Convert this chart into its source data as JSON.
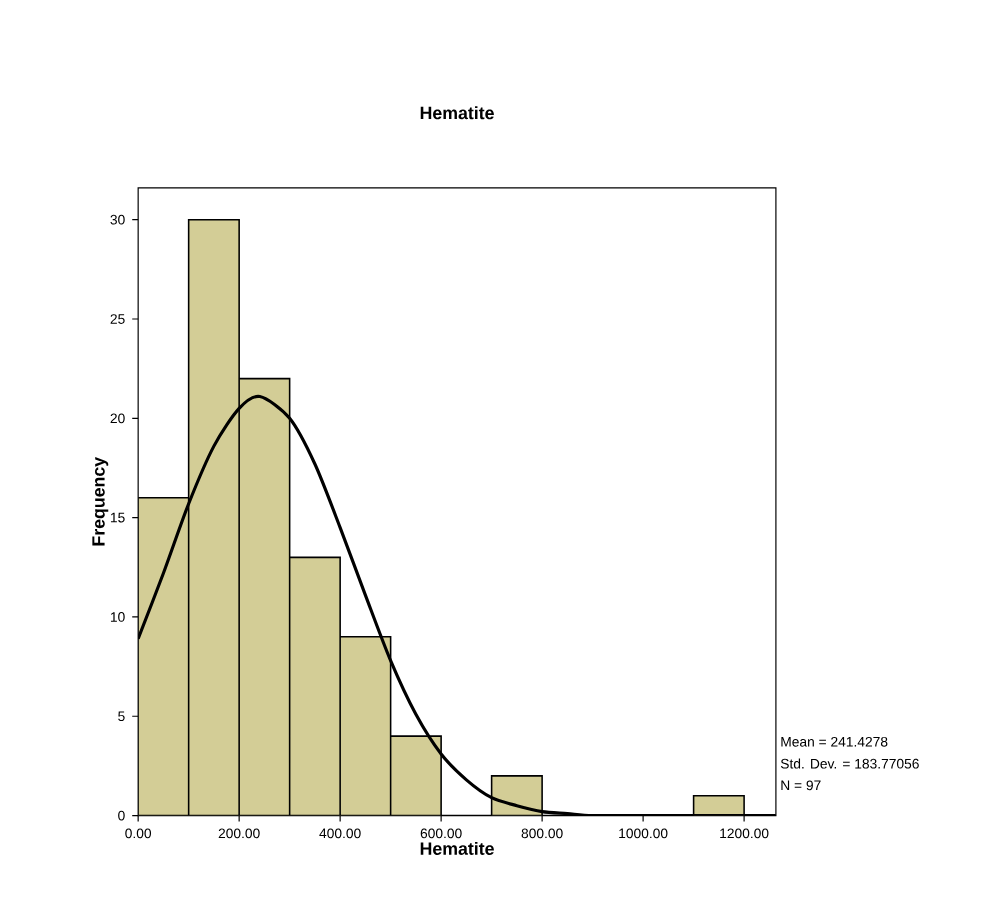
{
  "chart_data": {
    "type": "histogram",
    "title": "Hematite",
    "xlabel": "Hematite",
    "ylabel": "Frequency",
    "bins": [
      0,
      100,
      200,
      300,
      400,
      500,
      600,
      700,
      800,
      900,
      1000,
      1100,
      1200
    ],
    "values": [
      16,
      30,
      22,
      13,
      9,
      4,
      0,
      2,
      0,
      0,
      0,
      1
    ],
    "color": "#d3cd96",
    "series": [
      {
        "type": "line",
        "color": "#000000",
        "x": [
          0,
          50,
          100,
          150,
          200,
          241,
          300,
          350,
          400,
          450,
          500,
          550,
          600,
          650,
          700,
          750,
          800,
          850,
          900,
          1000,
          1100,
          1200,
          1263
        ],
        "values": [
          8.9,
          12.2,
          15.7,
          18.6,
          20.5,
          21.1,
          20.0,
          17.7,
          14.5,
          11.1,
          7.8,
          5.1,
          3.1,
          1.8,
          0.9,
          0.5,
          0.2,
          0.1,
          0,
          0,
          0,
          0,
          0
        ]
      }
    ],
    "xlim": [
      0,
      1263
    ],
    "ylim": [
      0,
      31.6
    ],
    "xticks": [
      {
        "value": 0,
        "label": "0.00"
      },
      {
        "value": 200,
        "label": "200.00"
      },
      {
        "value": 400,
        "label": "400.00"
      },
      {
        "value": 600,
        "label": "600.00"
      },
      {
        "value": 800,
        "label": "800.00"
      },
      {
        "value": 1000,
        "label": "1000.00"
      },
      {
        "value": 1200,
        "label": "1200.00"
      }
    ],
    "yticks": [
      0,
      5,
      10,
      15,
      20,
      25,
      30
    ],
    "annotations": [
      "Mean = 241.4278",
      "Std. Dev. = 183.77056",
      "N = 97"
    ]
  }
}
